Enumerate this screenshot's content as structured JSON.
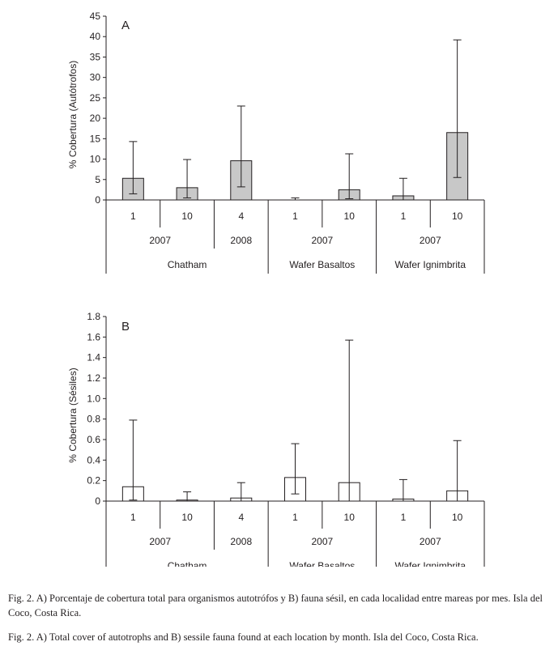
{
  "figure": {
    "chart_data": [
      {
        "type": "bar",
        "panel": "A",
        "ylabel": "% Cobertura (Autótrofos)",
        "ylim": [
          0,
          45
        ],
        "yticks": [
          "0",
          "5",
          "10",
          "15",
          "20",
          "25",
          "30",
          "35",
          "40",
          "45"
        ],
        "bar_color": "#c8c8c8",
        "categories": [
          {
            "month": "1",
            "year": "2007",
            "location": "Chatham"
          },
          {
            "month": "10",
            "year": "2007",
            "location": "Chatham"
          },
          {
            "month": "4",
            "year": "2008",
            "location": "Chatham"
          },
          {
            "month": "1",
            "year": "2007",
            "location": "Wafer Basaltos"
          },
          {
            "month": "10",
            "year": "2007",
            "location": "Wafer Basaltos"
          },
          {
            "month": "1",
            "year": "2007",
            "location": "Wafer Ignimbrita"
          },
          {
            "month": "10",
            "year": "2007",
            "location": "Wafer Ignimbrita"
          }
        ],
        "values": [
          5.3,
          3.0,
          9.6,
          0.0,
          2.5,
          1.0,
          16.5
        ],
        "error_low": [
          1.5,
          0.5,
          3.2,
          0.0,
          0.3,
          0.0,
          5.5
        ],
        "error_high": [
          14.3,
          9.9,
          23.0,
          0.5,
          11.3,
          5.3,
          39.2
        ],
        "year_groups": [
          {
            "label": "2007",
            "span": [
              0,
              1
            ]
          },
          {
            "label": "2008",
            "span": [
              2,
              2
            ]
          },
          {
            "label": "2007",
            "span": [
              3,
              4
            ]
          },
          {
            "label": "2007",
            "span": [
              5,
              6
            ]
          }
        ],
        "location_groups": [
          {
            "label": "Chatham",
            "span": [
              0,
              2
            ]
          },
          {
            "label": "Wafer Basaltos",
            "span": [
              3,
              4
            ]
          },
          {
            "label": "Wafer Ignimbrita",
            "span": [
              5,
              6
            ]
          }
        ]
      },
      {
        "type": "bar",
        "panel": "B",
        "ylabel": "% Cobertura (Sésiles)",
        "ylim": [
          0,
          1.8
        ],
        "yticks": [
          "0",
          "0.2",
          "0.4",
          "0.6",
          "0.8",
          "1.0",
          "1.2",
          "1.4",
          "1.6",
          "1.8"
        ],
        "bar_color": "#ffffff",
        "categories": [
          {
            "month": "1",
            "year": "2007",
            "location": "Chatham"
          },
          {
            "month": "10",
            "year": "2007",
            "location": "Chatham"
          },
          {
            "month": "4",
            "year": "2008",
            "location": "Chatham"
          },
          {
            "month": "1",
            "year": "2007",
            "location": "Wafer Basaltos"
          },
          {
            "month": "10",
            "year": "2007",
            "location": "Wafer Basaltos"
          },
          {
            "month": "1",
            "year": "2007",
            "location": "Wafer Ignimbrita"
          },
          {
            "month": "10",
            "year": "2007",
            "location": "Wafer Ignimbrita"
          }
        ],
        "values": [
          0.14,
          0.01,
          0.03,
          0.23,
          0.18,
          0.02,
          0.1
        ],
        "error_low": [
          0.01,
          0.0,
          0.0,
          0.07,
          0.0,
          0.0,
          0.0
        ],
        "error_high": [
          0.79,
          0.09,
          0.18,
          0.56,
          1.57,
          0.21,
          0.59
        ],
        "year_groups": [
          {
            "label": "2007",
            "span": [
              0,
              1
            ]
          },
          {
            "label": "2008",
            "span": [
              2,
              2
            ]
          },
          {
            "label": "2007",
            "span": [
              3,
              4
            ]
          },
          {
            "label": "2007",
            "span": [
              5,
              6
            ]
          }
        ],
        "location_groups": [
          {
            "label": "Chatham",
            "span": [
              0,
              2
            ]
          },
          {
            "label": "Wafer Basaltos",
            "span": [
              3,
              4
            ]
          },
          {
            "label": "Wafer Ignimbrita",
            "span": [
              5,
              6
            ]
          }
        ]
      }
    ]
  },
  "captions": {
    "spanish": "Fig. 2. A) Porcentaje de cobertura total para organismos autotrófos y B) fauna sésil, en cada localidad entre mareas por mes. Isla del Coco, Costa Rica.",
    "english": "Fig. 2. A) Total cover of autotrophs and B) sessile fauna found at each location by month. Isla del Coco, Costa Rica."
  }
}
